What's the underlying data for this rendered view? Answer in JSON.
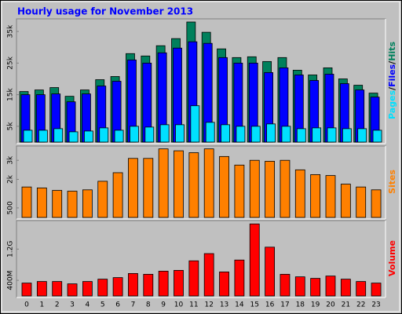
{
  "chart_data": [
    {
      "type": "bar",
      "title": "Hourly usage for November 2013",
      "legend_separator": "/",
      "ylim": [
        0,
        39000
      ],
      "yticks": [
        {
          "value": 5000,
          "label": "5k"
        },
        {
          "value": 15000,
          "label": "15k"
        },
        {
          "value": 25000,
          "label": "25k"
        },
        {
          "value": 35000,
          "label": "35k"
        }
      ],
      "series": [
        {
          "name": "Pages",
          "color": "#00e0ff",
          "values": [
            3750,
            3750,
            4250,
            3250,
            3500,
            4500,
            3750,
            5000,
            4750,
            5500,
            5500,
            11500,
            6250,
            5500,
            5000,
            5000,
            5750,
            5000,
            4250,
            4500,
            4500,
            4250,
            4250,
            3750
          ]
        },
        {
          "name": "Files",
          "color": "#0000ff",
          "values": [
            15000,
            15000,
            15250,
            12750,
            15250,
            17750,
            19250,
            26000,
            25000,
            28250,
            29750,
            31750,
            31250,
            26750,
            25000,
            25000,
            22000,
            23500,
            21250,
            19500,
            21500,
            18500,
            16500,
            14250
          ]
        },
        {
          "name": "Hits",
          "color": "#00805c",
          "values": [
            16000,
            16500,
            17250,
            14500,
            16500,
            19750,
            20750,
            28000,
            27250,
            30500,
            32750,
            38000,
            34750,
            29500,
            26750,
            27000,
            25500,
            26750,
            22750,
            21250,
            23500,
            20000,
            18000,
            15500
          ]
        }
      ]
    },
    {
      "type": "bar",
      "ylim": [
        0,
        3750
      ],
      "yticks": [
        500,
        {
          "value": 2000,
          "label": "2k"
        },
        {
          "value": 3000,
          "label": "3k"
        }
      ],
      "series": [
        {
          "name": "Sites",
          "color": "#ff8000",
          "values": [
            1600,
            1550,
            1420,
            1380,
            1450,
            1900,
            2350,
            3100,
            3100,
            3600,
            3500,
            3400,
            3600,
            3200,
            2750,
            3000,
            2950,
            3000,
            2500,
            2250,
            2200,
            1750,
            1600,
            1450
          ]
        }
      ]
    },
    {
      "type": "bar",
      "ylim": [
        0,
        1930
      ],
      "yticks": [
        {
          "value": 400,
          "label": "400M"
        },
        {
          "value": 1200,
          "label": "1.2G"
        }
      ],
      "categories": [
        "0",
        "1",
        "2",
        "3",
        "4",
        "5",
        "6",
        "7",
        "8",
        "9",
        "10",
        "11",
        "12",
        "13",
        "14",
        "15",
        "16",
        "17",
        "18",
        "19",
        "20",
        "21",
        "22",
        "23"
      ],
      "series": [
        {
          "name": "Volume",
          "color": "#ff0000",
          "values": [
            330,
            370,
            370,
            310,
            370,
            430,
            470,
            575,
            555,
            635,
            655,
            900,
            1085,
            615,
            920,
            1845,
            1250,
            555,
            490,
            450,
            510,
            430,
            370,
            330
          ]
        }
      ]
    }
  ]
}
